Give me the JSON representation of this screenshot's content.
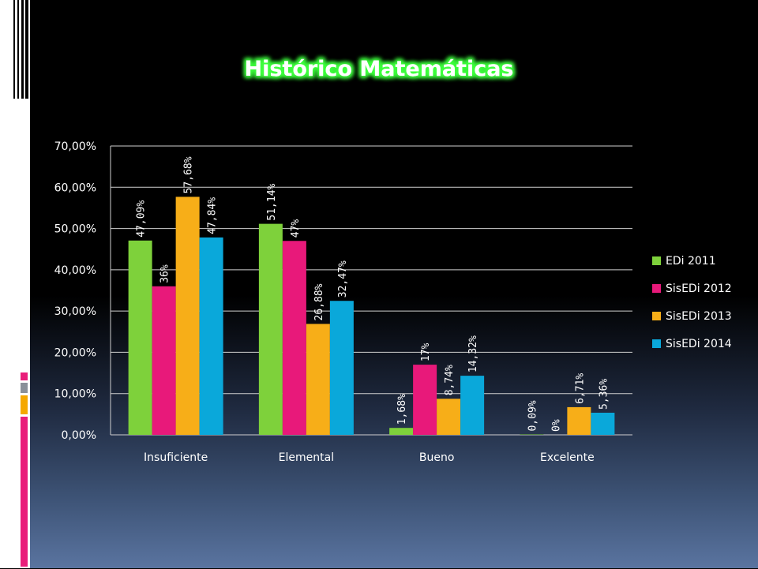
{
  "slide": {
    "title": "Histórico  Matemáticas",
    "accent_colors": [
      "#e91e7a",
      "#8a9099",
      "#f5a800"
    ]
  },
  "chart_data": {
    "type": "bar",
    "title": "",
    "xlabel": "",
    "ylabel": "",
    "ylim": [
      0,
      70
    ],
    "yticks": [
      0,
      10,
      20,
      30,
      40,
      50,
      60,
      70
    ],
    "ytick_labels": [
      "0,00%",
      "10,00%",
      "20,00%",
      "30,00%",
      "40,00%",
      "50,00%",
      "60,00%",
      "70,00%"
    ],
    "grid": true,
    "legend_position": "right",
    "categories": [
      "Insuficiente",
      "Elemental",
      "Bueno",
      "Excelente"
    ],
    "series": [
      {
        "name": "EDi 2011",
        "color": "#7ed13b",
        "values": [
          47.09,
          51.14,
          1.68,
          0.09
        ],
        "labels": [
          "47,09%",
          "51,14%",
          "1,68%",
          "0,09%"
        ]
      },
      {
        "name": "SisEDi 2012",
        "color": "#e8197a",
        "values": [
          36,
          47,
          17,
          0
        ],
        "labels": [
          "36%",
          "47%",
          "17%",
          "0%"
        ]
      },
      {
        "name": "SisEDi 2013",
        "color": "#f7ae18",
        "values": [
          57.68,
          26.88,
          8.74,
          6.71
        ],
        "labels": [
          "57,68%",
          "26,88%",
          "8,74%",
          "6,71%"
        ]
      },
      {
        "name": "SisEDi 2014",
        "color": "#0aa8da",
        "values": [
          47.84,
          32.47,
          14.32,
          5.36
        ],
        "labels": [
          "47,84%",
          "32,47%",
          "14,32%",
          "5,36%"
        ]
      }
    ]
  }
}
